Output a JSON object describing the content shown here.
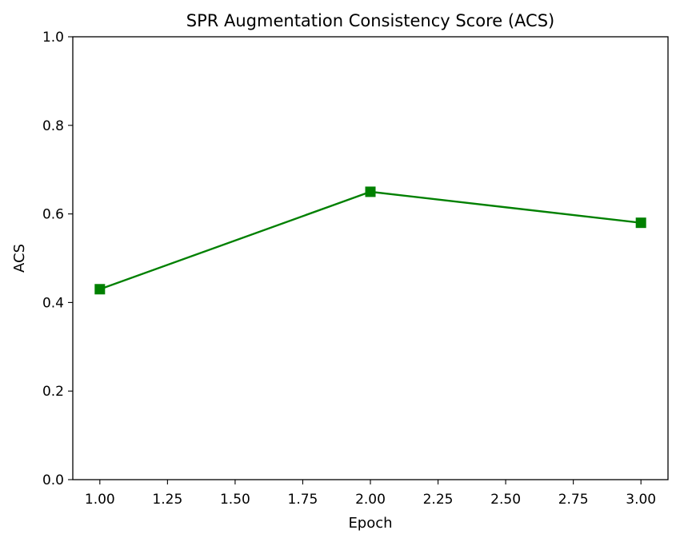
{
  "chart_data": {
    "type": "line",
    "title": "SPR Augmentation Consistency Score (ACS)",
    "xlabel": "Epoch",
    "ylabel": "ACS",
    "xlim": [
      0.9,
      3.1
    ],
    "ylim": [
      0.0,
      1.0
    ],
    "x_ticks": [
      1.0,
      1.25,
      1.5,
      1.75,
      2.0,
      2.25,
      2.5,
      2.75,
      3.0
    ],
    "x_tick_labels": [
      "1.00",
      "1.25",
      "1.50",
      "1.75",
      "2.00",
      "2.25",
      "2.50",
      "2.75",
      "3.00"
    ],
    "y_ticks": [
      0.0,
      0.2,
      0.4,
      0.6,
      0.8,
      1.0
    ],
    "y_tick_labels": [
      "0.0",
      "0.2",
      "0.4",
      "0.6",
      "0.8",
      "1.0"
    ],
    "grid": false,
    "series": [
      {
        "x": [
          1,
          2,
          3
        ],
        "values": [
          0.43,
          0.65,
          0.58
        ],
        "color": "#008000",
        "marker": "square"
      }
    ]
  }
}
